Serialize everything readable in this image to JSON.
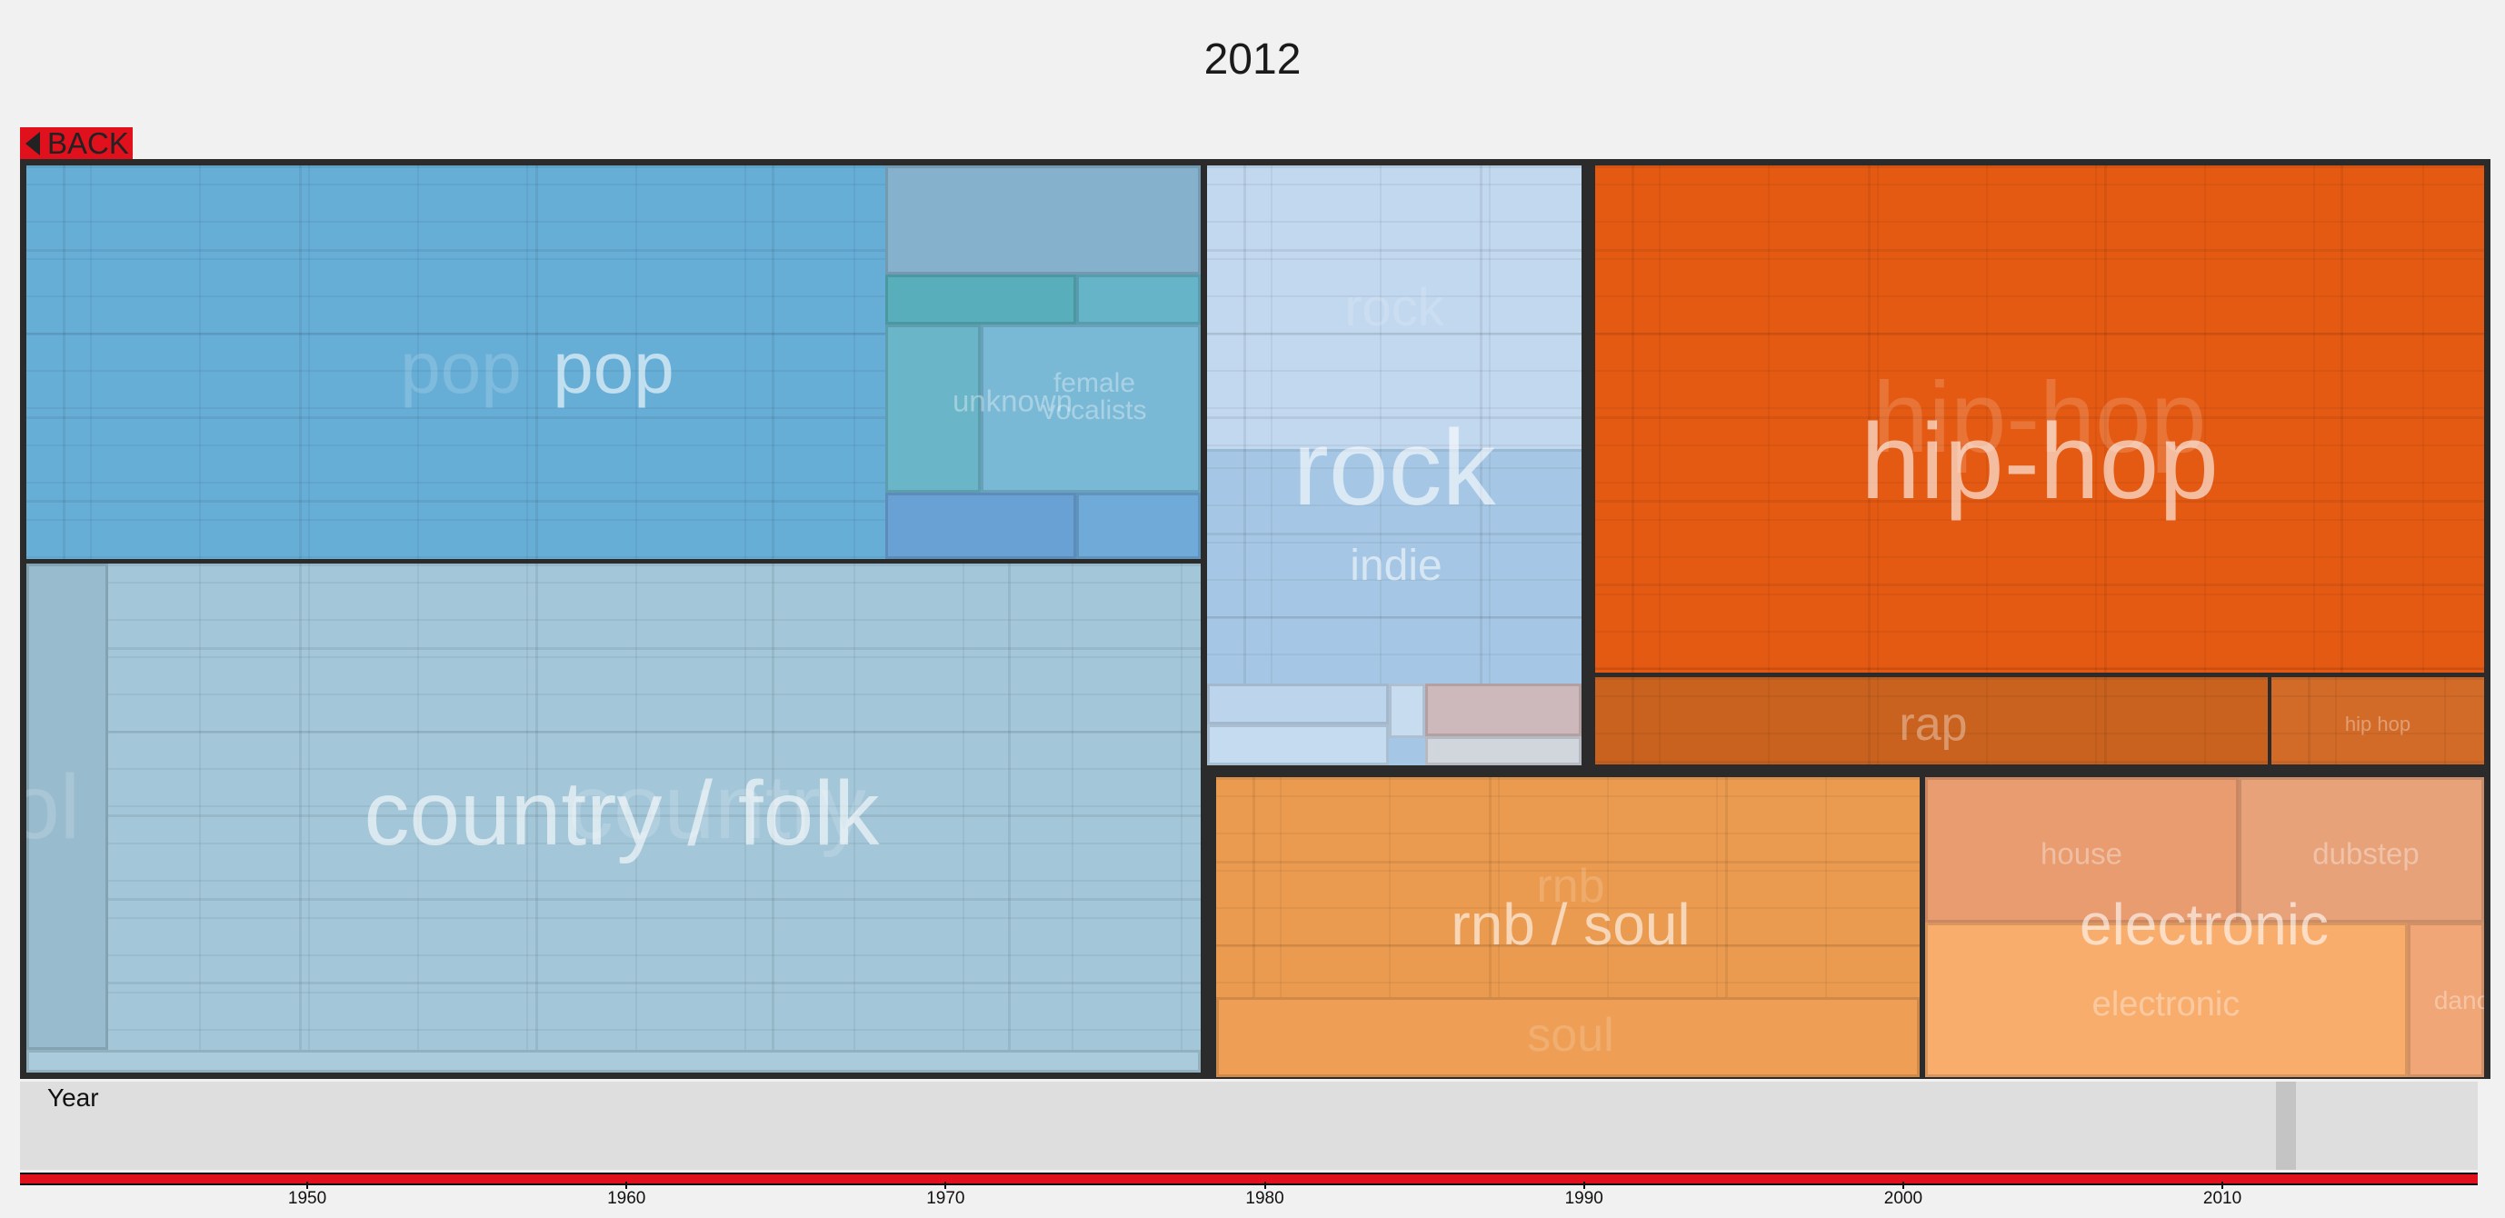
{
  "title": "2012",
  "back_label": "BACK",
  "colors": {
    "pop": "#67aed7",
    "country_folk": "#a3c6d8",
    "rock": "#c2d8ef",
    "indie": "#a5c7e5",
    "hiphop": "#e55a13",
    "rap": "#c9621f",
    "rnb_soul": "#eb9b4f",
    "electronic": "#f0a266",
    "accent": "#e0101c"
  },
  "timeline": {
    "label": "Year",
    "selected_year": 2012
  },
  "axis": {
    "ticks": [
      "1950",
      "1960",
      "1970",
      "1980",
      "1990",
      "2000",
      "2010"
    ]
  },
  "chart_data": {
    "type": "treemap",
    "title": "2012",
    "genres": [
      {
        "name": "pop",
        "subgenres": [
          "pop",
          "unknown",
          "female vocalists"
        ]
      },
      {
        "name": "country / folk",
        "subgenres": [
          "country",
          "folk"
        ]
      },
      {
        "name": "rock",
        "subgenres": [
          "rock",
          "indie"
        ]
      },
      {
        "name": "hip-hop",
        "subgenres": [
          "hip-hop",
          "rap",
          "hip hop"
        ]
      },
      {
        "name": "rnb / soul",
        "subgenres": [
          "rnb",
          "soul"
        ]
      },
      {
        "name": "electronic",
        "subgenres": [
          "house",
          "dubstep",
          "electronic",
          "dance"
        ]
      }
    ],
    "x_axis": {
      "label": "Year",
      "range": [
        1941,
        2018
      ]
    },
    "selected": 2012
  }
}
